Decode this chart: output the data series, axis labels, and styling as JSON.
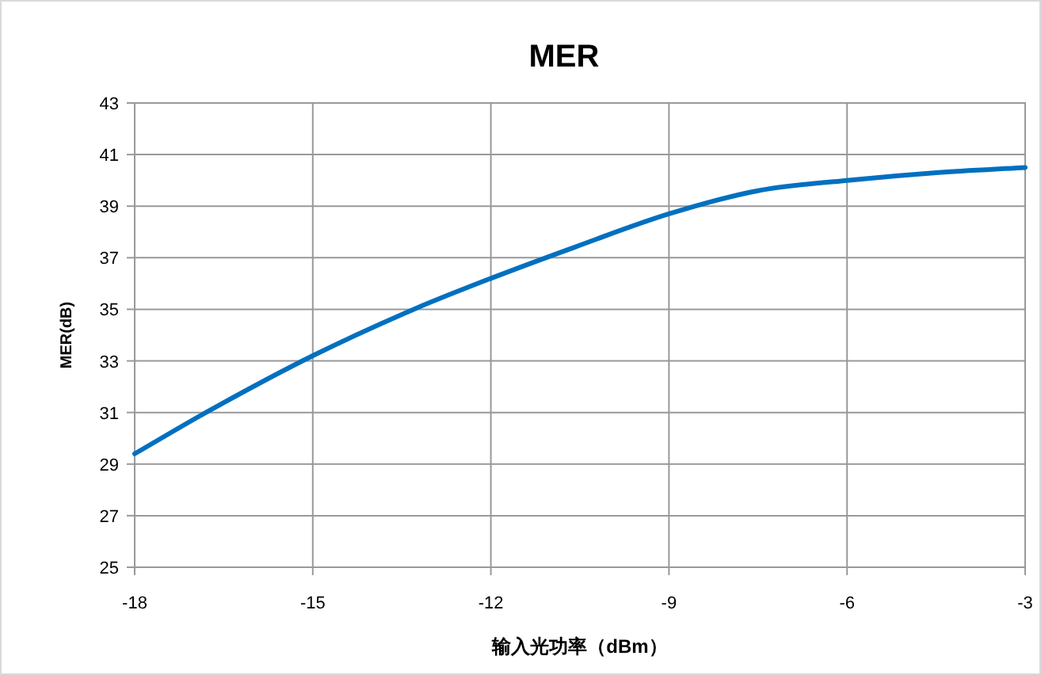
{
  "chart_data": {
    "type": "line",
    "title": "MER",
    "xlabel": "输入光功率（dBm）",
    "ylabel": "MER(dB)",
    "x": [
      -18,
      -16.8,
      -15,
      -13.3,
      -12,
      -10.6,
      -9,
      -7.5,
      -6,
      -4.5,
      -3
    ],
    "series": [
      {
        "color": "#0070c0",
        "values": [
          29.4,
          31.0,
          33.2,
          35.0,
          36.2,
          37.4,
          38.7,
          39.6,
          40.0,
          40.3,
          40.5
        ]
      }
    ],
    "xlim": [
      -18,
      -3
    ],
    "xticks": [
      -18,
      -15,
      -12,
      -9,
      -6,
      -3
    ],
    "ylim": [
      25,
      43
    ],
    "yticks": [
      25,
      27,
      29,
      31,
      33,
      35,
      37,
      39,
      41,
      43
    ],
    "grid": true
  }
}
